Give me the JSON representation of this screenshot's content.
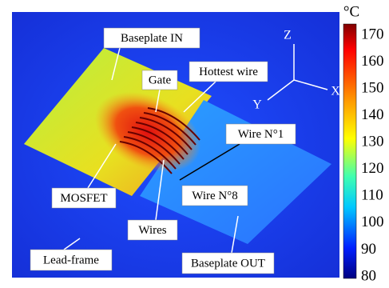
{
  "labels": {
    "baseplate_in": "Baseplate IN",
    "gate": "Gate",
    "hottest_wire": "Hottest wire",
    "wire_1": "Wire N°1",
    "mosfet": "MOSFET",
    "wire_8": "Wire N°8",
    "wires": "Wires",
    "lead_frame": "Lead-frame",
    "baseplate_out": "Baseplate OUT"
  },
  "axes": {
    "z": "Z",
    "x": "X",
    "y": "Y"
  },
  "colorbar": {
    "unit": "°C",
    "ticks": [
      170,
      160,
      150,
      140,
      130,
      120,
      110,
      100,
      90,
      80
    ]
  }
}
